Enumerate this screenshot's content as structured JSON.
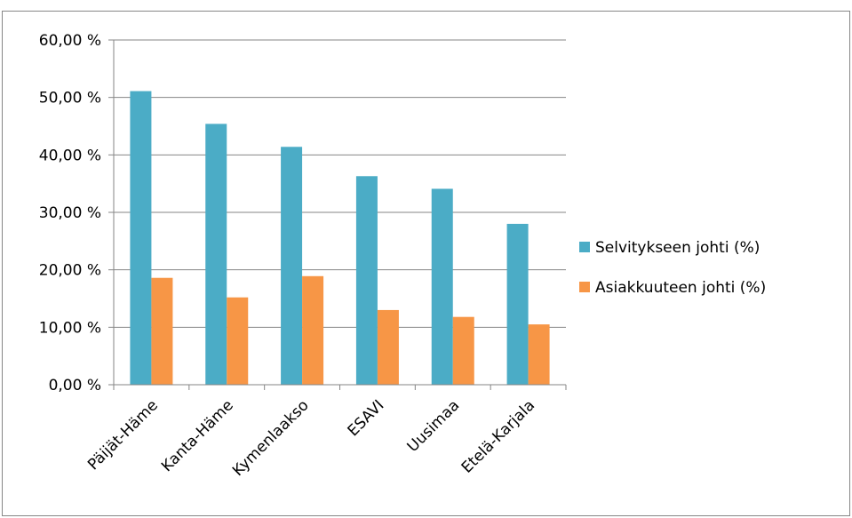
{
  "chart_data": {
    "type": "bar",
    "categories": [
      "Päijät-Häme",
      "Kanta-Häme",
      "Kymenlaakso",
      "ESAVI",
      "Uusimaa",
      "Etelä-Karjala"
    ],
    "series": [
      {
        "name": "Selvitykseen johti (%)",
        "color": "#4bacc6",
        "values": [
          51.1,
          45.4,
          41.4,
          36.3,
          34.1,
          28.0
        ]
      },
      {
        "name": "Asiakkuuteen johti (%)",
        "color": "#f79646",
        "values": [
          18.6,
          15.2,
          18.9,
          13.0,
          11.8,
          10.5
        ]
      }
    ],
    "ylim": [
      0,
      60
    ],
    "yticks": [
      0,
      10,
      20,
      30,
      40,
      50,
      60
    ],
    "ytick_labels": [
      "0,00 %",
      "10,00 %",
      "20,00 %",
      "30,00 %",
      "40,00 %",
      "50,00 %",
      "60,00 %"
    ],
    "grid": true,
    "legend": "right",
    "title": "",
    "xlabel": "",
    "ylabel": ""
  }
}
